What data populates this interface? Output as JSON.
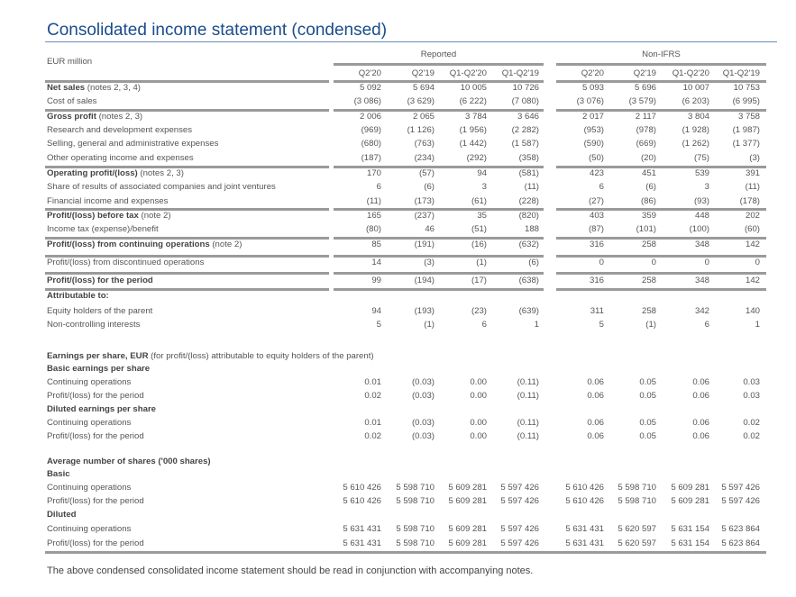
{
  "title": "Consolidated income statement (condensed)",
  "unit_label": "EUR million",
  "groups": [
    "Reported",
    "Non-IFRS"
  ],
  "columns": [
    "Q2'20",
    "Q2'19",
    "Q1-Q2'20",
    "Q1-Q2'19",
    "Q2'20",
    "Q2'19",
    "Q1-Q2'20",
    "Q1-Q2'19"
  ],
  "rows": [
    {
      "bold": "Net sales",
      "note": " (notes 2, 3, 4)",
      "values": [
        "5 092",
        "5 694",
        "10 005",
        "10 726",
        "5 093",
        "5 696",
        "10 007",
        "10 753"
      ]
    },
    {
      "bold": "",
      "note": "Cost of sales",
      "values": [
        "(3 086)",
        "(3 629)",
        "(6 222)",
        "(7 080)",
        "(3 076)",
        "(3 579)",
        "(6 203)",
        "(6 995)"
      ]
    },
    {
      "bold": "Gross profit",
      "note": " (notes 2, 3)",
      "values": [
        "2 006",
        "2 065",
        "3 784",
        "3 646",
        "2 017",
        "2 117",
        "3 804",
        "3 758"
      ]
    },
    {
      "bold": "",
      "note": "Research and development expenses",
      "values": [
        "(969)",
        "(1 126)",
        "(1 956)",
        "(2 282)",
        "(953)",
        "(978)",
        "(1 928)",
        "(1 987)"
      ]
    },
    {
      "bold": "",
      "note": "Selling, general and administrative expenses",
      "values": [
        "(680)",
        "(763)",
        "(1 442)",
        "(1 587)",
        "(590)",
        "(669)",
        "(1 262)",
        "(1 377)"
      ]
    },
    {
      "bold": "",
      "note": "Other operating income and expenses",
      "values": [
        "(187)",
        "(234)",
        "(292)",
        "(358)",
        "(50)",
        "(20)",
        "(75)",
        "(3)"
      ]
    },
    {
      "bold": "Operating profit/(loss)",
      "note": " (notes 2, 3)",
      "values": [
        "170",
        "(57)",
        "94",
        "(581)",
        "423",
        "451",
        "539",
        "391"
      ]
    },
    {
      "bold": "",
      "note": "Share of results of associated companies and joint ventures",
      "values": [
        "6",
        "(6)",
        "3",
        "(11)",
        "6",
        "(6)",
        "3",
        "(11)"
      ]
    },
    {
      "bold": "",
      "note": "Financial income and expenses",
      "values": [
        "(11)",
        "(173)",
        "(61)",
        "(228)",
        "(27)",
        "(86)",
        "(93)",
        "(178)"
      ]
    },
    {
      "bold": "Profit/(loss) before tax",
      "note": " (note 2)",
      "values": [
        "165",
        "(237)",
        "35",
        "(820)",
        "403",
        "359",
        "448",
        "202"
      ]
    },
    {
      "bold": "",
      "note": "Income tax (expense)/benefit",
      "values": [
        "(80)",
        "46",
        "(51)",
        "188",
        "(87)",
        "(101)",
        "(100)",
        "(60)"
      ]
    },
    {
      "bold": "Profit/(loss) from continuing operations",
      "note": " (note 2)",
      "values": [
        "85",
        "(191)",
        "(16)",
        "(632)",
        "316",
        "258",
        "348",
        "142"
      ]
    },
    {
      "bold": "",
      "note": "Profit/(loss) from discontinued operations",
      "values": [
        "14",
        "(3)",
        "(1)",
        "(6)",
        "0",
        "0",
        "0",
        "0"
      ]
    },
    {
      "bold": "Profit/(loss) for the period",
      "note": "",
      "values": [
        "99",
        "(194)",
        "(17)",
        "(638)",
        "316",
        "258",
        "348",
        "142"
      ]
    },
    {
      "bold": "Attributable to:",
      "note": "",
      "values": []
    },
    {
      "bold": "",
      "note": "Equity holders of the parent",
      "values": [
        "94",
        "(193)",
        "(23)",
        "(639)",
        "311",
        "258",
        "342",
        "140"
      ]
    },
    {
      "bold": "",
      "note": "Non-controlling interests",
      "values": [
        "5",
        "(1)",
        "6",
        "1",
        "5",
        "(1)",
        "6",
        "1"
      ]
    },
    {
      "bold": "Earnings per share, EUR",
      "note": " (for profit/(loss) attributable to equity holders of the parent)",
      "values": []
    },
    {
      "bold": "Basic earnings per share",
      "note": "",
      "values": []
    },
    {
      "bold": "",
      "note": "Continuing operations",
      "values": [
        "0.01",
        "(0.03)",
        "0.00",
        "(0.11)",
        "0.06",
        "0.05",
        "0.06",
        "0.03"
      ]
    },
    {
      "bold": "",
      "note": "Profit/(loss) for the period",
      "values": [
        "0.02",
        "(0.03)",
        "0.00",
        "(0.11)",
        "0.06",
        "0.05",
        "0.06",
        "0.03"
      ]
    },
    {
      "bold": "Diluted earnings per share",
      "note": "",
      "values": []
    },
    {
      "bold": "",
      "note": "Continuing operations",
      "values": [
        "0.01",
        "(0.03)",
        "0.00",
        "(0.11)",
        "0.06",
        "0.05",
        "0.06",
        "0.02"
      ]
    },
    {
      "bold": "",
      "note": "Profit/(loss) for the period",
      "values": [
        "0.02",
        "(0.03)",
        "0.00",
        "(0.11)",
        "0.06",
        "0.05",
        "0.06",
        "0.02"
      ]
    },
    {
      "bold": "Average number of shares ('000 shares)",
      "note": "",
      "values": []
    },
    {
      "bold": "Basic",
      "note": "",
      "values": []
    },
    {
      "bold": "",
      "note": "Continuing operations",
      "values": [
        "5 610 426",
        "5 598 710",
        "5 609 281",
        "5 597 426",
        "5 610 426",
        "5 598 710",
        "5 609 281",
        "5 597 426"
      ]
    },
    {
      "bold": "",
      "note": "Profit/(loss) for the period",
      "values": [
        "5 610 426",
        "5 598 710",
        "5 609 281",
        "5 597 426",
        "5 610 426",
        "5 598 710",
        "5 609 281",
        "5 597 426"
      ]
    },
    {
      "bold": "Diluted",
      "note": "",
      "values": []
    },
    {
      "bold": "",
      "note": "Continuing operations",
      "values": [
        "5 631 431",
        "5 598 710",
        "5 609 281",
        "5 597 426",
        "5 631 431",
        "5 620 597",
        "5 631 154",
        "5 623 864"
      ]
    },
    {
      "bold": "",
      "note": "Profit/(loss) for the period",
      "values": [
        "5 631 431",
        "5 598 710",
        "5 609 281",
        "5 597 426",
        "5 631 431",
        "5 620 597",
        "5 631 154",
        "5 623 864"
      ]
    }
  ],
  "footnote": "The above condensed consolidated income statement should be read in conjunction with accompanying notes."
}
